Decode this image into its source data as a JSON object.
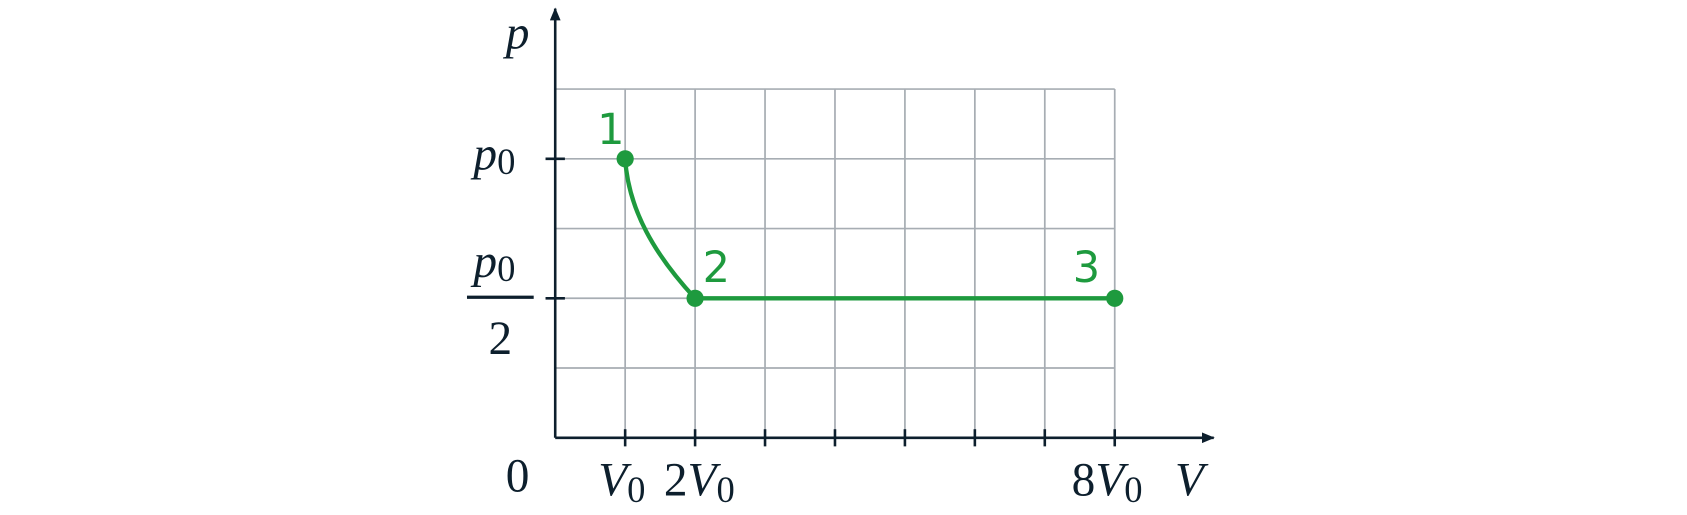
{
  "axes": {
    "y_label": "p",
    "x_label": "V",
    "origin": "0"
  },
  "y_ticks": [
    {
      "base": "p",
      "sub": "0"
    },
    {
      "numerator": {
        "base": "p",
        "sub": "0"
      },
      "denominator": "2"
    }
  ],
  "x_ticks": [
    {
      "coef": "",
      "base": "V",
      "sub": "0"
    },
    {
      "coef": "2",
      "base": "V",
      "sub": "0"
    },
    {
      "coef": "8",
      "base": "V",
      "sub": "0"
    }
  ],
  "points": [
    {
      "label": "1"
    },
    {
      "label": "2"
    },
    {
      "label": "3"
    }
  ]
}
